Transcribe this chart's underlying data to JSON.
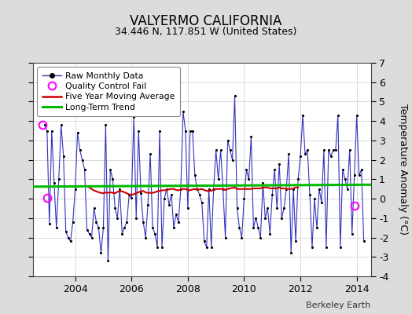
{
  "title": "VALYERMO CALIFORNIA",
  "subtitle": "34.446 N, 117.851 W (United States)",
  "ylabel": "Temperature Anomaly (°C)",
  "credit": "Berkeley Earth",
  "ylim": [
    -4,
    7
  ],
  "yticks": [
    -4,
    -3,
    -2,
    -1,
    0,
    1,
    2,
    3,
    4,
    5,
    6,
    7
  ],
  "xlim_start": 2002.5,
  "xlim_end": 2014.5,
  "xticks": [
    2004,
    2006,
    2008,
    2010,
    2012,
    2014
  ],
  "long_term_trend_y0": 0.62,
  "long_term_trend_y1": 0.72,
  "background_color": "#dcdcdc",
  "plot_bg_color": "#ffffff",
  "line_color": "#3333bb",
  "marker_color": "#000000",
  "ma_color": "#cc0000",
  "trend_color": "#00bb00",
  "qc_fail_color": "#ff00ff",
  "qc_fail_points": [
    [
      2002.833,
      3.8
    ],
    [
      2003.0,
      0.05
    ],
    [
      2013.917,
      -0.35
    ]
  ],
  "raw_data": [
    [
      2002.917,
      3.8
    ],
    [
      2003.0,
      3.5
    ],
    [
      2003.083,
      -1.3
    ],
    [
      2003.167,
      3.5
    ],
    [
      2003.25,
      0.8
    ],
    [
      2003.333,
      -1.5
    ],
    [
      2003.417,
      1.0
    ],
    [
      2003.5,
      3.8
    ],
    [
      2003.583,
      2.2
    ],
    [
      2003.667,
      -1.7
    ],
    [
      2003.75,
      -2.0
    ],
    [
      2003.833,
      -2.2
    ],
    [
      2003.917,
      -1.2
    ],
    [
      2004.0,
      0.5
    ],
    [
      2004.083,
      3.4
    ],
    [
      2004.167,
      2.5
    ],
    [
      2004.25,
      2.0
    ],
    [
      2004.333,
      1.5
    ],
    [
      2004.417,
      -1.6
    ],
    [
      2004.5,
      -1.8
    ],
    [
      2004.583,
      -2.0
    ],
    [
      2004.667,
      -0.5
    ],
    [
      2004.75,
      -1.2
    ],
    [
      2004.833,
      -1.5
    ],
    [
      2004.917,
      -2.8
    ],
    [
      2005.0,
      -1.5
    ],
    [
      2005.083,
      3.8
    ],
    [
      2005.167,
      -3.2
    ],
    [
      2005.25,
      1.5
    ],
    [
      2005.333,
      1.0
    ],
    [
      2005.417,
      -0.5
    ],
    [
      2005.5,
      -1.0
    ],
    [
      2005.583,
      0.5
    ],
    [
      2005.667,
      -1.8
    ],
    [
      2005.75,
      -1.5
    ],
    [
      2005.833,
      -1.2
    ],
    [
      2005.917,
      0.2
    ],
    [
      2006.0,
      0.05
    ],
    [
      2006.083,
      4.2
    ],
    [
      2006.167,
      -1.0
    ],
    [
      2006.25,
      3.5
    ],
    [
      2006.333,
      0.3
    ],
    [
      2006.417,
      -1.2
    ],
    [
      2006.5,
      -2.0
    ],
    [
      2006.583,
      -0.3
    ],
    [
      2006.667,
      2.3
    ],
    [
      2006.75,
      -1.5
    ],
    [
      2006.833,
      -1.8
    ],
    [
      2006.917,
      -2.5
    ],
    [
      2007.0,
      3.5
    ],
    [
      2007.083,
      -2.5
    ],
    [
      2007.167,
      0.0
    ],
    [
      2007.25,
      0.5
    ],
    [
      2007.333,
      -0.3
    ],
    [
      2007.417,
      0.2
    ],
    [
      2007.5,
      -1.5
    ],
    [
      2007.583,
      -0.8
    ],
    [
      2007.667,
      -1.2
    ],
    [
      2007.75,
      0.5
    ],
    [
      2007.833,
      4.5
    ],
    [
      2007.917,
      3.5
    ],
    [
      2008.0,
      -0.5
    ],
    [
      2008.083,
      3.5
    ],
    [
      2008.167,
      3.5
    ],
    [
      2008.25,
      1.2
    ],
    [
      2008.333,
      0.5
    ],
    [
      2008.417,
      0.2
    ],
    [
      2008.5,
      -0.2
    ],
    [
      2008.583,
      -2.2
    ],
    [
      2008.667,
      -2.5
    ],
    [
      2008.75,
      0.5
    ],
    [
      2008.833,
      -2.5
    ],
    [
      2008.917,
      0.5
    ],
    [
      2009.0,
      2.5
    ],
    [
      2009.083,
      1.0
    ],
    [
      2009.167,
      2.5
    ],
    [
      2009.25,
      0.5
    ],
    [
      2009.333,
      -2.0
    ],
    [
      2009.417,
      3.0
    ],
    [
      2009.5,
      2.5
    ],
    [
      2009.583,
      2.0
    ],
    [
      2009.667,
      5.3
    ],
    [
      2009.75,
      -0.5
    ],
    [
      2009.833,
      -1.5
    ],
    [
      2009.917,
      -2.0
    ],
    [
      2010.0,
      0.0
    ],
    [
      2010.083,
      1.5
    ],
    [
      2010.167,
      1.0
    ],
    [
      2010.25,
      3.2
    ],
    [
      2010.333,
      -1.5
    ],
    [
      2010.417,
      -1.0
    ],
    [
      2010.5,
      -1.5
    ],
    [
      2010.583,
      -2.0
    ],
    [
      2010.667,
      0.8
    ],
    [
      2010.75,
      -1.0
    ],
    [
      2010.833,
      -0.5
    ],
    [
      2010.917,
      -1.8
    ],
    [
      2011.0,
      0.2
    ],
    [
      2011.083,
      1.5
    ],
    [
      2011.167,
      -0.5
    ],
    [
      2011.25,
      1.8
    ],
    [
      2011.333,
      -1.0
    ],
    [
      2011.417,
      -0.5
    ],
    [
      2011.5,
      0.5
    ],
    [
      2011.583,
      2.3
    ],
    [
      2011.667,
      -2.8
    ],
    [
      2011.75,
      0.5
    ],
    [
      2011.833,
      -2.2
    ],
    [
      2011.917,
      1.0
    ],
    [
      2012.0,
      2.2
    ],
    [
      2012.083,
      4.3
    ],
    [
      2012.167,
      2.3
    ],
    [
      2012.25,
      2.5
    ],
    [
      2012.333,
      0.2
    ],
    [
      2012.417,
      -2.5
    ],
    [
      2012.5,
      0.0
    ],
    [
      2012.583,
      -1.5
    ],
    [
      2012.667,
      0.5
    ],
    [
      2012.75,
      -0.2
    ],
    [
      2012.833,
      2.5
    ],
    [
      2012.917,
      -2.5
    ],
    [
      2013.0,
      2.5
    ],
    [
      2013.083,
      2.2
    ],
    [
      2013.167,
      2.5
    ],
    [
      2013.25,
      2.5
    ],
    [
      2013.333,
      4.3
    ],
    [
      2013.417,
      -2.5
    ],
    [
      2013.5,
      1.5
    ],
    [
      2013.583,
      1.0
    ],
    [
      2013.667,
      0.5
    ],
    [
      2013.75,
      2.5
    ],
    [
      2013.833,
      -1.8
    ],
    [
      2013.917,
      1.2
    ],
    [
      2014.0,
      4.3
    ],
    [
      2014.083,
      1.2
    ],
    [
      2014.167,
      1.5
    ],
    [
      2014.25,
      -2.2
    ]
  ],
  "moving_avg": [
    [
      2004.5,
      0.58
    ],
    [
      2004.583,
      0.5
    ],
    [
      2004.667,
      0.42
    ],
    [
      2004.75,
      0.38
    ],
    [
      2004.833,
      0.33
    ],
    [
      2004.917,
      0.3
    ],
    [
      2005.0,
      0.28
    ],
    [
      2005.083,
      0.32
    ],
    [
      2005.167,
      0.3
    ],
    [
      2005.25,
      0.33
    ],
    [
      2005.333,
      0.3
    ],
    [
      2005.417,
      0.28
    ],
    [
      2005.5,
      0.35
    ],
    [
      2005.583,
      0.38
    ],
    [
      2005.667,
      0.38
    ],
    [
      2005.75,
      0.33
    ],
    [
      2005.833,
      0.28
    ],
    [
      2005.917,
      0.22
    ],
    [
      2006.0,
      0.2
    ],
    [
      2006.083,
      0.23
    ],
    [
      2006.167,
      0.28
    ],
    [
      2006.25,
      0.33
    ],
    [
      2006.333,
      0.38
    ],
    [
      2006.417,
      0.4
    ],
    [
      2006.5,
      0.32
    ],
    [
      2006.583,
      0.3
    ],
    [
      2006.667,
      0.3
    ],
    [
      2006.75,
      0.3
    ],
    [
      2006.833,
      0.33
    ],
    [
      2006.917,
      0.38
    ],
    [
      2007.0,
      0.4
    ],
    [
      2007.083,
      0.43
    ],
    [
      2007.167,
      0.43
    ],
    [
      2007.25,
      0.45
    ],
    [
      2007.333,
      0.48
    ],
    [
      2007.417,
      0.5
    ],
    [
      2007.5,
      0.5
    ],
    [
      2007.583,
      0.45
    ],
    [
      2007.667,
      0.43
    ],
    [
      2007.75,
      0.48
    ],
    [
      2007.833,
      0.5
    ],
    [
      2007.917,
      0.5
    ],
    [
      2008.0,
      0.45
    ],
    [
      2008.083,
      0.43
    ],
    [
      2008.167,
      0.48
    ],
    [
      2008.25,
      0.5
    ],
    [
      2008.333,
      0.45
    ],
    [
      2008.417,
      0.48
    ],
    [
      2008.5,
      0.5
    ],
    [
      2008.583,
      0.45
    ],
    [
      2008.667,
      0.4
    ],
    [
      2008.75,
      0.4
    ],
    [
      2008.833,
      0.4
    ],
    [
      2008.917,
      0.48
    ],
    [
      2009.0,
      0.5
    ],
    [
      2009.083,
      0.5
    ],
    [
      2009.167,
      0.5
    ],
    [
      2009.25,
      0.5
    ],
    [
      2009.333,
      0.45
    ],
    [
      2009.417,
      0.5
    ],
    [
      2009.5,
      0.53
    ],
    [
      2009.583,
      0.55
    ],
    [
      2009.667,
      0.58
    ],
    [
      2009.75,
      0.5
    ],
    [
      2009.833,
      0.5
    ],
    [
      2009.917,
      0.5
    ],
    [
      2010.0,
      0.5
    ],
    [
      2010.083,
      0.5
    ],
    [
      2010.167,
      0.5
    ],
    [
      2010.25,
      0.5
    ],
    [
      2010.333,
      0.53
    ],
    [
      2010.417,
      0.53
    ],
    [
      2010.5,
      0.53
    ],
    [
      2010.583,
      0.53
    ],
    [
      2010.667,
      0.58
    ],
    [
      2010.75,
      0.58
    ],
    [
      2010.833,
      0.58
    ],
    [
      2010.917,
      0.53
    ],
    [
      2011.0,
      0.53
    ],
    [
      2011.083,
      0.53
    ],
    [
      2011.167,
      0.53
    ],
    [
      2011.25,
      0.58
    ],
    [
      2011.333,
      0.53
    ],
    [
      2011.417,
      0.53
    ],
    [
      2011.5,
      0.5
    ],
    [
      2011.583,
      0.5
    ],
    [
      2011.667,
      0.5
    ],
    [
      2011.75,
      0.53
    ],
    [
      2011.833,
      0.58
    ],
    [
      2011.917,
      0.58
    ]
  ]
}
